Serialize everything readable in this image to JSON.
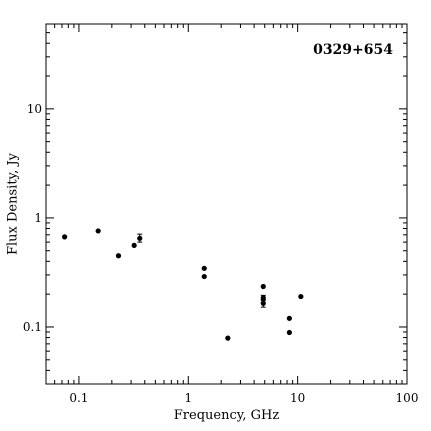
{
  "chart_data": {
    "type": "scatter",
    "title": "0329+654",
    "xlabel": "Frequency, GHz",
    "ylabel": "Flux Density, Jy",
    "xscale": "log",
    "yscale": "log",
    "xlim": [
      0.05,
      100
    ],
    "ylim": [
      0.03,
      60
    ],
    "xticks": [
      {
        "value": 0.1,
        "label": "0.1"
      },
      {
        "value": 1,
        "label": "1"
      },
      {
        "value": 10,
        "label": "10"
      },
      {
        "value": 100,
        "label": "100"
      }
    ],
    "yticks": [
      {
        "value": 0.1,
        "label": "0.1"
      },
      {
        "value": 1,
        "label": "1"
      },
      {
        "value": 10,
        "label": "10"
      }
    ],
    "grid": false,
    "annotation_position": "top-right",
    "colors": {
      "axes": "#000000",
      "points": "#000000",
      "background": "#ffffff"
    },
    "points": [
      {
        "x": 0.074,
        "y": 0.67
      },
      {
        "x": 0.15,
        "y": 0.76
      },
      {
        "x": 0.23,
        "y": 0.45
      },
      {
        "x": 0.32,
        "y": 0.56
      },
      {
        "x": 0.36,
        "y": 0.65,
        "err": [
          0.6,
          0.71
        ]
      },
      {
        "x": 1.4,
        "y": 0.345
      },
      {
        "x": 1.4,
        "y": 0.29
      },
      {
        "x": 2.3,
        "y": 0.079
      },
      {
        "x": 4.85,
        "y": 0.235
      },
      {
        "x": 4.85,
        "y": 0.185,
        "err": [
          0.175,
          0.195
        ]
      },
      {
        "x": 4.85,
        "y": 0.165,
        "err": [
          0.152,
          0.178
        ]
      },
      {
        "x": 8.4,
        "y": 0.12
      },
      {
        "x": 8.4,
        "y": 0.089
      },
      {
        "x": 10.7,
        "y": 0.19
      }
    ]
  }
}
